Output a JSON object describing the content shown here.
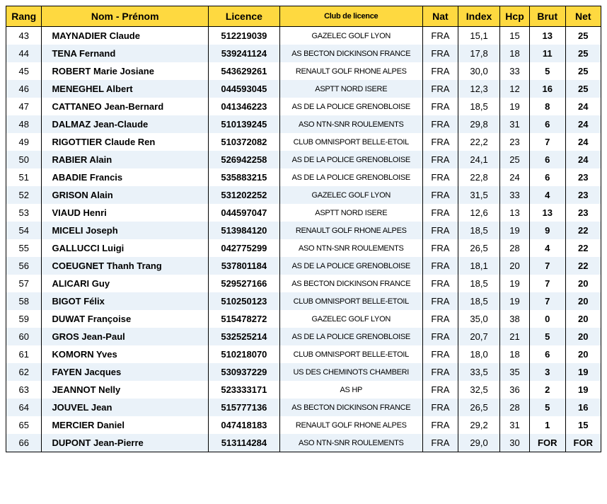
{
  "colors": {
    "header_bg": "#fed940",
    "row_odd_bg": "#ffffff",
    "row_even_bg": "#eaf2f9",
    "border": "#000000",
    "text": "#000000"
  },
  "columns": [
    {
      "key": "rang",
      "label": "Rang",
      "class": "col-rang"
    },
    {
      "key": "nom",
      "label": "Nom - Prénom",
      "class": "col-nom"
    },
    {
      "key": "lic",
      "label": "Licence",
      "class": "col-lic"
    },
    {
      "key": "club",
      "label": "Club de licence",
      "class": "col-club"
    },
    {
      "key": "nat",
      "label": "Nat",
      "class": "col-nat"
    },
    {
      "key": "index",
      "label": "Index",
      "class": "col-index"
    },
    {
      "key": "hcp",
      "label": "Hcp",
      "class": "col-hcp"
    },
    {
      "key": "brut",
      "label": "Brut",
      "class": "col-brut"
    },
    {
      "key": "net",
      "label": "Net",
      "class": "col-net"
    }
  ],
  "rows": [
    {
      "rang": "43",
      "nom": "MAYNADIER Claude",
      "lic": "512219039",
      "club": "GAZELEC GOLF LYON",
      "nat": "FRA",
      "index": "15,1",
      "hcp": "15",
      "brut": "13",
      "net": "25"
    },
    {
      "rang": "44",
      "nom": "TENA Fernand",
      "lic": "539241124",
      "club": "AS BECTON DICKINSON FRANCE",
      "nat": "FRA",
      "index": "17,8",
      "hcp": "18",
      "brut": "11",
      "net": "25"
    },
    {
      "rang": "45",
      "nom": "ROBERT Marie Josiane",
      "lic": "543629261",
      "club": "RENAULT GOLF RHONE ALPES",
      "nat": "FRA",
      "index": "30,0",
      "hcp": "33",
      "brut": "5",
      "net": "25"
    },
    {
      "rang": "46",
      "nom": "MENEGHEL Albert",
      "lic": "044593045",
      "club": "ASPTT NORD ISERE",
      "nat": "FRA",
      "index": "12,3",
      "hcp": "12",
      "brut": "16",
      "net": "25"
    },
    {
      "rang": "47",
      "nom": "CATTANEO Jean-Bernard",
      "lic": "041346223",
      "club": "AS DE LA POLICE GRENOBLOISE",
      "nat": "FRA",
      "index": "18,5",
      "hcp": "19",
      "brut": "8",
      "net": "24"
    },
    {
      "rang": "48",
      "nom": "DALMAZ Jean-Claude",
      "lic": "510139245",
      "club": "ASO NTN-SNR ROULEMENTS",
      "nat": "FRA",
      "index": "29,8",
      "hcp": "31",
      "brut": "6",
      "net": "24"
    },
    {
      "rang": "49",
      "nom": "RIGOTTIER Claude Ren",
      "lic": "510372082",
      "club": "CLUB OMNISPORT BELLE-ETOIL",
      "nat": "FRA",
      "index": "22,2",
      "hcp": "23",
      "brut": "7",
      "net": "24"
    },
    {
      "rang": "50",
      "nom": "RABIER Alain",
      "lic": "526942258",
      "club": "AS DE LA POLICE GRENOBLOISE",
      "nat": "FRA",
      "index": "24,1",
      "hcp": "25",
      "brut": "6",
      "net": "24"
    },
    {
      "rang": "51",
      "nom": "ABADIE Francis",
      "lic": "535883215",
      "club": "AS DE LA POLICE GRENOBLOISE",
      "nat": "FRA",
      "index": "22,8",
      "hcp": "24",
      "brut": "6",
      "net": "23"
    },
    {
      "rang": "52",
      "nom": "GRISON Alain",
      "lic": "531202252",
      "club": "GAZELEC GOLF LYON",
      "nat": "FRA",
      "index": "31,5",
      "hcp": "33",
      "brut": "4",
      "net": "23"
    },
    {
      "rang": "53",
      "nom": "VIAUD Henri",
      "lic": "044597047",
      "club": "ASPTT NORD ISERE",
      "nat": "FRA",
      "index": "12,6",
      "hcp": "13",
      "brut": "13",
      "net": "23"
    },
    {
      "rang": "54",
      "nom": "MICELI Joseph",
      "lic": "513984120",
      "club": "RENAULT GOLF RHONE ALPES",
      "nat": "FRA",
      "index": "18,5",
      "hcp": "19",
      "brut": "9",
      "net": "22"
    },
    {
      "rang": "55",
      "nom": "GALLUCCI Luigi",
      "lic": "042775299",
      "club": "ASO NTN-SNR ROULEMENTS",
      "nat": "FRA",
      "index": "26,5",
      "hcp": "28",
      "brut": "4",
      "net": "22"
    },
    {
      "rang": "56",
      "nom": "COEUGNET Thanh Trang",
      "lic": "537801184",
      "club": "AS DE LA POLICE GRENOBLOISE",
      "nat": "FRA",
      "index": "18,1",
      "hcp": "20",
      "brut": "7",
      "net": "22"
    },
    {
      "rang": "57",
      "nom": "ALICARI Guy",
      "lic": "529527166",
      "club": "AS BECTON DICKINSON FRANCE",
      "nat": "FRA",
      "index": "18,5",
      "hcp": "19",
      "brut": "7",
      "net": "20"
    },
    {
      "rang": "58",
      "nom": "BIGOT Félix",
      "lic": "510250123",
      "club": "CLUB OMNISPORT BELLE-ETOIL",
      "nat": "FRA",
      "index": "18,5",
      "hcp": "19",
      "brut": "7",
      "net": "20"
    },
    {
      "rang": "59",
      "nom": "DUWAT Françoise",
      "lic": "515478272",
      "club": "GAZELEC GOLF LYON",
      "nat": "FRA",
      "index": "35,0",
      "hcp": "38",
      "brut": "0",
      "net": "20"
    },
    {
      "rang": "60",
      "nom": "GROS Jean-Paul",
      "lic": "532525214",
      "club": "AS DE LA POLICE GRENOBLOISE",
      "nat": "FRA",
      "index": "20,7",
      "hcp": "21",
      "brut": "5",
      "net": "20"
    },
    {
      "rang": "61",
      "nom": "KOMORN Yves",
      "lic": "510218070",
      "club": "CLUB OMNISPORT BELLE-ETOIL",
      "nat": "FRA",
      "index": "18,0",
      "hcp": "18",
      "brut": "6",
      "net": "20"
    },
    {
      "rang": "62",
      "nom": "FAYEN Jacques",
      "lic": "530937229",
      "club": "US DES CHEMINOTS CHAMBERI",
      "nat": "FRA",
      "index": "33,5",
      "hcp": "35",
      "brut": "3",
      "net": "19"
    },
    {
      "rang": "63",
      "nom": "JEANNOT Nelly",
      "lic": "523333171",
      "club": "AS HP",
      "nat": "FRA",
      "index": "32,5",
      "hcp": "36",
      "brut": "2",
      "net": "19"
    },
    {
      "rang": "64",
      "nom": "JOUVEL Jean",
      "lic": "515777136",
      "club": "AS BECTON DICKINSON FRANCE",
      "nat": "FRA",
      "index": "26,5",
      "hcp": "28",
      "brut": "5",
      "net": "16"
    },
    {
      "rang": "65",
      "nom": "MERCIER Daniel",
      "lic": "047418183",
      "club": "RENAULT GOLF RHONE ALPES",
      "nat": "FRA",
      "index": "29,2",
      "hcp": "31",
      "brut": "1",
      "net": "15"
    },
    {
      "rang": "66",
      "nom": "DUPONT Jean-Pierre",
      "lic": "513114284",
      "club": "ASO NTN-SNR ROULEMENTS",
      "nat": "FRA",
      "index": "29,0",
      "hcp": "30",
      "brut": "FOR",
      "net": "FOR"
    }
  ]
}
